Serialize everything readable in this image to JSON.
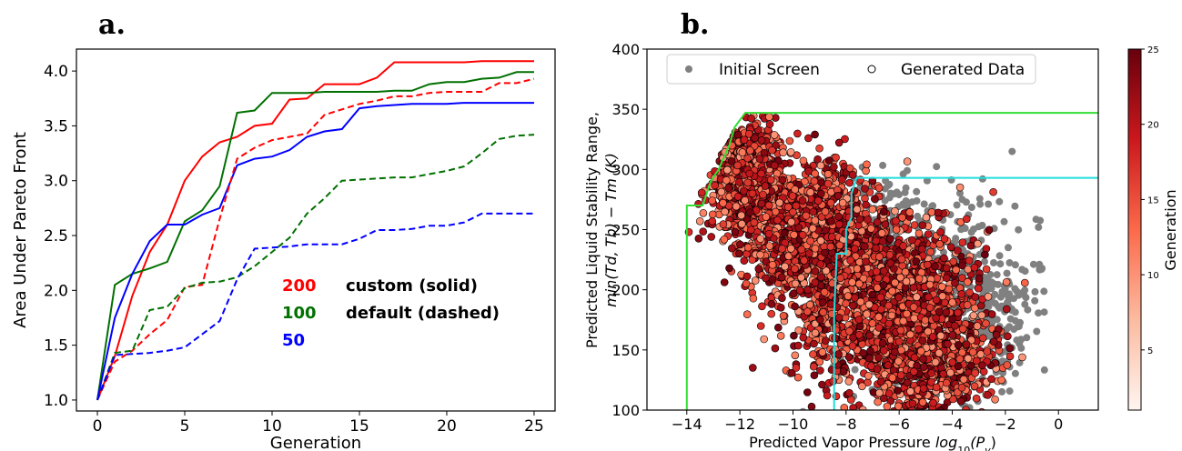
{
  "panels": {
    "a_label": "a.",
    "b_label": "b."
  },
  "chart_data": [
    {
      "type": "line",
      "xlabel": "Generation",
      "ylabel": "Area Under Pareto Front",
      "xlim": [
        -1.2,
        26.2
      ],
      "ylim": [
        0.9,
        4.2
      ],
      "xticks": [
        0,
        5,
        10,
        15,
        20,
        25
      ],
      "yticks": [
        1.0,
        1.5,
        2.0,
        2.5,
        3.0,
        3.5,
        4.0
      ],
      "grid": false,
      "legend_text": {
        "n200": "200",
        "n100": "100",
        "n50": "50",
        "solid_label": "custom (solid)",
        "dashed_label": "default (dashed)"
      },
      "colors": {
        "200": "#ff0000",
        "100": "#007000",
        "50": "#0000ff"
      },
      "series": [
        {
          "key": "200",
          "style": "solid",
          "color": "#ff0000",
          "x": [
            0,
            1,
            2,
            3,
            4,
            5,
            6,
            7,
            8,
            9,
            10,
            11,
            12,
            13,
            14,
            15,
            16,
            17,
            18,
            19,
            20,
            21,
            22,
            23,
            24,
            25
          ],
          "y": [
            1.0,
            1.4,
            1.95,
            2.35,
            2.6,
            3.0,
            3.22,
            3.35,
            3.4,
            3.5,
            3.52,
            3.74,
            3.75,
            3.88,
            3.88,
            3.88,
            3.94,
            4.08,
            4.08,
            4.08,
            4.08,
            4.08,
            4.09,
            4.09,
            4.09,
            4.09
          ]
        },
        {
          "key": "100",
          "style": "solid",
          "color": "#007000",
          "x": [
            0,
            1,
            2,
            3,
            4,
            5,
            6,
            7,
            8,
            9,
            10,
            11,
            12,
            13,
            14,
            15,
            16,
            17,
            18,
            19,
            20,
            21,
            22,
            23,
            24,
            25
          ],
          "y": [
            1.0,
            2.05,
            2.15,
            2.2,
            2.26,
            2.63,
            2.73,
            2.95,
            3.62,
            3.64,
            3.8,
            3.8,
            3.8,
            3.81,
            3.81,
            3.81,
            3.81,
            3.82,
            3.82,
            3.88,
            3.9,
            3.9,
            3.93,
            3.94,
            3.99,
            3.99
          ]
        },
        {
          "key": "50",
          "style": "solid",
          "color": "#0000ff",
          "x": [
            0,
            1,
            2,
            3,
            4,
            5,
            6,
            7,
            8,
            9,
            10,
            11,
            12,
            13,
            14,
            15,
            16,
            17,
            18,
            19,
            20,
            21,
            22,
            23,
            24,
            25
          ],
          "y": [
            1.0,
            1.75,
            2.15,
            2.45,
            2.6,
            2.6,
            2.69,
            2.75,
            3.14,
            3.2,
            3.22,
            3.28,
            3.4,
            3.45,
            3.47,
            3.66,
            3.68,
            3.69,
            3.7,
            3.7,
            3.7,
            3.71,
            3.71,
            3.71,
            3.71,
            3.71
          ]
        },
        {
          "key": "200",
          "style": "dashed",
          "color": "#ff0000",
          "x": [
            0,
            1,
            2,
            3,
            4,
            5,
            6,
            7,
            8,
            9,
            10,
            11,
            12,
            13,
            14,
            15,
            16,
            17,
            18,
            19,
            20,
            21,
            22,
            23,
            24,
            25
          ],
          "y": [
            1.0,
            1.35,
            1.45,
            1.6,
            1.73,
            2.03,
            2.05,
            2.65,
            3.2,
            3.3,
            3.37,
            3.4,
            3.43,
            3.6,
            3.65,
            3.7,
            3.73,
            3.77,
            3.77,
            3.8,
            3.81,
            3.81,
            3.81,
            3.89,
            3.89,
            3.93
          ]
        },
        {
          "key": "100",
          "style": "dashed",
          "color": "#007000",
          "x": [
            0,
            1,
            2,
            3,
            4,
            5,
            6,
            7,
            8,
            9,
            10,
            11,
            12,
            13,
            14,
            15,
            16,
            17,
            18,
            19,
            20,
            21,
            22,
            23,
            24,
            25
          ],
          "y": [
            1.0,
            1.43,
            1.45,
            1.82,
            1.85,
            2.02,
            2.07,
            2.08,
            2.12,
            2.22,
            2.35,
            2.48,
            2.7,
            2.84,
            3.0,
            3.01,
            3.02,
            3.03,
            3.03,
            3.06,
            3.09,
            3.13,
            3.25,
            3.38,
            3.41,
            3.42
          ]
        },
        {
          "key": "50",
          "style": "dashed",
          "color": "#0000ff",
          "x": [
            0,
            1,
            2,
            3,
            4,
            5,
            6,
            7,
            8,
            9,
            10,
            11,
            12,
            13,
            14,
            15,
            16,
            17,
            18,
            19,
            20,
            21,
            22,
            23,
            24,
            25
          ],
          "y": [
            1.0,
            1.41,
            1.42,
            1.43,
            1.45,
            1.48,
            1.6,
            1.72,
            2.1,
            2.38,
            2.39,
            2.4,
            2.42,
            2.42,
            2.42,
            2.47,
            2.55,
            2.55,
            2.56,
            2.59,
            2.59,
            2.62,
            2.7,
            2.7,
            2.7,
            2.7
          ]
        }
      ]
    },
    {
      "type": "scatter",
      "xlabel": "Predicted Vapor Pressure log10(Pv)",
      "xlabel_prefix": "Predicted Vapor Pressure ",
      "xlabel_math": "log",
      "xlabel_sub1": "10",
      "xlabel_paren": "(P",
      "xlabel_sub2": "v",
      "xlabel_end": ")",
      "ylabel_line1": "Predicted Liquid Stability Range,",
      "ylabel_line2": "min(Td, Tb) − Tm (K)",
      "xlim": [
        -15.5,
        1.5
      ],
      "ylim": [
        100,
        400
      ],
      "xticks": [
        -14,
        -12,
        -10,
        -8,
        -6,
        -4,
        -2,
        0
      ],
      "yticks": [
        100,
        150,
        200,
        250,
        300,
        350,
        400
      ],
      "legend": [
        "Initial Screen",
        "Generated Data"
      ],
      "legend_placement": "top",
      "colorbar": {
        "label": "Generation",
        "min": 1,
        "max": 25,
        "ticks": [
          5,
          10,
          15,
          20,
          25
        ],
        "colormap": "Reds"
      },
      "initial_screen_color": "#808080",
      "fronts": [
        {
          "name": "green",
          "color": "#33dd33",
          "points": [
            [
              -14.0,
              100
            ],
            [
              -14.0,
              270
            ],
            [
              -13.4,
              270
            ],
            [
              -13.1,
              290
            ],
            [
              -12.8,
              300
            ],
            [
              -12.4,
              320
            ],
            [
              -12.2,
              335
            ],
            [
              -11.8,
              347
            ],
            [
              1.5,
              347
            ]
          ]
        },
        {
          "name": "cyan",
          "color": "#22dddd",
          "points": [
            [
              -8.45,
              100
            ],
            [
              -8.45,
              180
            ],
            [
              -8.35,
              230
            ],
            [
              -8.0,
              230
            ],
            [
              -8.0,
              250
            ],
            [
              -7.8,
              260
            ],
            [
              -7.8,
              280
            ],
            [
              -7.6,
              293
            ],
            [
              1.5,
              293
            ]
          ]
        }
      ],
      "clusters": [
        {
          "kind": "initial",
          "cx": -4.5,
          "cy": 195,
          "sx": 1.8,
          "sy": 40,
          "n": 420,
          "rot": -0.55
        },
        {
          "kind": "initial",
          "cx": -3.0,
          "cy": 160,
          "sx": 1.1,
          "sy": 30,
          "n": 200,
          "rot": -0.5
        },
        {
          "kind": "initial",
          "cx": -6.5,
          "cy": 255,
          "sx": 1.3,
          "sy": 25,
          "n": 160,
          "rot": -0.4
        },
        {
          "kind": "gen",
          "cx": -11.8,
          "cy": 290,
          "sx": 0.7,
          "sy": 25,
          "n": 900,
          "rot": 0.1
        },
        {
          "kind": "gen",
          "cx": -9.0,
          "cy": 265,
          "sx": 1.2,
          "sy": 25,
          "n": 450,
          "rot": -0.5
        },
        {
          "kind": "gen",
          "cx": -6.2,
          "cy": 180,
          "sx": 1.5,
          "sy": 35,
          "n": 1300,
          "rot": -0.55
        },
        {
          "kind": "gen",
          "cx": -8.0,
          "cy": 215,
          "sx": 1.3,
          "sy": 30,
          "n": 500,
          "rot": -0.5
        },
        {
          "kind": "gen",
          "cx": -4.5,
          "cy": 140,
          "sx": 1.1,
          "sy": 25,
          "n": 500,
          "rot": -0.5
        },
        {
          "kind": "gen",
          "cx": -9.8,
          "cy": 230,
          "sx": 1.0,
          "sy": 22,
          "n": 300,
          "rot": -0.4
        }
      ]
    }
  ]
}
